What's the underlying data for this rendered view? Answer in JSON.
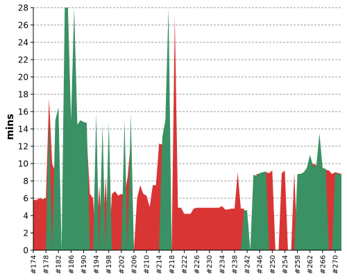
{
  "chart_data": {
    "type": "area",
    "ylabel": "mins",
    "ylim": [
      0,
      28
    ],
    "y_ticks": [
      0,
      2,
      4,
      6,
      8,
      10,
      12,
      14,
      16,
      18,
      20,
      22,
      24,
      26,
      28
    ],
    "x_tick_labels": [
      "#174",
      "#178",
      "#182",
      "#186",
      "#190",
      "#194",
      "#198",
      "#202",
      "#206",
      "#210",
      "#214",
      "#218",
      "#222",
      "#226",
      "#230",
      "#234",
      "#238",
      "#242",
      "#246",
      "#250",
      "#254",
      "#258",
      "#262",
      "#266",
      "#270"
    ],
    "x_start": 174,
    "x_end": 272,
    "grid": true,
    "grid_style": "dashed horizontal",
    "series": [
      {
        "color": "#d93535",
        "points": [
          [
            174,
            5.8
          ],
          [
            175,
            5.8
          ],
          [
            176,
            6.0
          ],
          [
            177,
            5.9
          ],
          [
            178,
            6.0
          ],
          [
            179,
            17.5
          ],
          [
            180,
            10.0
          ],
          [
            181,
            9.0
          ],
          [
            182,
            0
          ],
          [
            183,
            0
          ],
          [
            184,
            11.0
          ],
          [
            185,
            13.0
          ],
          [
            186,
            11.0
          ],
          [
            187,
            4.0
          ],
          [
            188,
            3.0
          ],
          [
            189,
            2.0
          ],
          [
            190,
            13.0
          ],
          [
            191,
            13.0
          ],
          [
            192,
            6.5
          ],
          [
            193,
            6.0
          ],
          [
            194,
            0
          ],
          [
            195,
            7.5
          ],
          [
            196,
            0
          ],
          [
            197,
            8.5
          ],
          [
            198,
            0
          ],
          [
            199,
            6.5
          ],
          [
            200,
            6.8
          ],
          [
            201,
            6.3
          ],
          [
            202,
            6.5
          ],
          [
            203,
            6.3
          ],
          [
            204,
            8.5
          ],
          [
            205,
            12.5
          ],
          [
            206,
            0
          ],
          [
            207,
            6.0
          ],
          [
            208,
            7.5
          ],
          [
            209,
            6.5
          ],
          [
            210,
            6.3
          ],
          [
            211,
            5.0
          ],
          [
            212,
            7.5
          ],
          [
            213,
            7.5
          ],
          [
            214,
            12.3
          ],
          [
            215,
            12.2
          ],
          [
            216,
            12.5
          ],
          [
            217,
            0
          ],
          [
            218,
            0
          ],
          [
            219,
            27.0
          ],
          [
            220,
            4.9
          ],
          [
            221,
            4.9
          ],
          [
            222,
            4.2
          ],
          [
            223,
            4.2
          ],
          [
            224,
            4.2
          ],
          [
            225,
            4.8
          ],
          [
            226,
            4.9
          ],
          [
            227,
            4.9
          ],
          [
            228,
            4.9
          ],
          [
            229,
            4.9
          ],
          [
            230,
            4.9
          ],
          [
            231,
            4.9
          ],
          [
            232,
            4.9
          ],
          [
            233,
            4.9
          ],
          [
            234,
            5.1
          ],
          [
            235,
            4.7
          ],
          [
            236,
            4.7
          ],
          [
            237,
            4.8
          ],
          [
            238,
            4.8
          ],
          [
            239,
            9.0
          ],
          [
            240,
            4.8
          ],
          [
            241,
            4.8
          ],
          [
            242,
            2.0
          ],
          [
            243,
            0
          ],
          [
            244,
            0
          ],
          [
            245,
            8.8
          ],
          [
            246,
            8.8
          ],
          [
            247,
            8.8
          ],
          [
            248,
            9.0
          ],
          [
            249,
            8.9
          ],
          [
            250,
            9.2
          ],
          [
            251,
            0
          ],
          [
            252,
            0
          ],
          [
            253,
            8.9
          ],
          [
            254,
            9.2
          ],
          [
            255,
            0
          ],
          [
            256,
            0
          ],
          [
            257,
            9.0
          ],
          [
            258,
            0
          ],
          [
            259,
            8.8
          ],
          [
            260,
            8.9
          ],
          [
            261,
            9.0
          ],
          [
            262,
            9.3
          ],
          [
            263,
            10.0
          ],
          [
            264,
            9.8
          ],
          [
            265,
            9.7
          ],
          [
            266,
            9.5
          ],
          [
            267,
            9.3
          ],
          [
            268,
            9.2
          ],
          [
            269,
            8.8
          ],
          [
            270,
            9.0
          ],
          [
            271,
            8.9
          ],
          [
            272,
            8.8
          ]
        ]
      },
      {
        "color": "#3a9163",
        "points": [
          [
            174,
            0
          ],
          [
            175,
            0
          ],
          [
            176,
            0
          ],
          [
            177,
            0
          ],
          [
            178,
            0
          ],
          [
            179,
            15.0
          ],
          [
            180,
            0
          ],
          [
            181,
            15.0
          ],
          [
            182,
            16.5
          ],
          [
            183,
            0
          ],
          [
            184,
            28.0
          ],
          [
            185,
            28.0
          ],
          [
            186,
            15.0
          ],
          [
            187,
            28.0
          ],
          [
            188,
            14.5
          ],
          [
            189,
            15.0
          ],
          [
            190,
            14.8
          ],
          [
            191,
            14.7
          ],
          [
            192,
            0
          ],
          [
            193,
            0
          ],
          [
            194,
            15.8
          ],
          [
            195,
            0
          ],
          [
            196,
            14.5
          ],
          [
            197,
            0
          ],
          [
            198,
            14.8
          ],
          [
            199,
            0
          ],
          [
            200,
            0
          ],
          [
            201,
            0
          ],
          [
            202,
            0
          ],
          [
            203,
            15.0
          ],
          [
            204,
            0
          ],
          [
            205,
            15.8
          ],
          [
            206,
            0
          ],
          [
            207,
            0
          ],
          [
            208,
            0
          ],
          [
            209,
            0
          ],
          [
            210,
            0
          ],
          [
            211,
            0
          ],
          [
            212,
            0
          ],
          [
            213,
            0
          ],
          [
            214,
            0
          ],
          [
            215,
            13.0
          ],
          [
            216,
            15.0
          ],
          [
            217,
            28.0
          ],
          [
            218,
            0
          ],
          [
            219,
            0
          ],
          [
            220,
            0
          ],
          [
            221,
            0
          ],
          [
            222,
            0
          ],
          [
            223,
            0
          ],
          [
            224,
            0
          ],
          [
            225,
            0
          ],
          [
            226,
            0
          ],
          [
            227,
            0
          ],
          [
            228,
            0
          ],
          [
            229,
            0
          ],
          [
            230,
            0
          ],
          [
            231,
            0
          ],
          [
            232,
            0
          ],
          [
            233,
            0
          ],
          [
            234,
            0
          ],
          [
            235,
            0
          ],
          [
            236,
            0
          ],
          [
            237,
            0
          ],
          [
            238,
            0
          ],
          [
            239,
            0
          ],
          [
            240,
            0
          ],
          [
            241,
            4.6
          ],
          [
            242,
            4.6
          ],
          [
            243,
            0
          ],
          [
            244,
            8.7
          ],
          [
            245,
            8.6
          ],
          [
            246,
            8.9
          ],
          [
            247,
            9.0
          ],
          [
            248,
            9.1
          ],
          [
            249,
            0
          ],
          [
            250,
            0
          ],
          [
            251,
            0
          ],
          [
            252,
            0
          ],
          [
            253,
            0
          ],
          [
            254,
            0
          ],
          [
            255,
            0
          ],
          [
            256,
            0
          ],
          [
            257,
            0
          ],
          [
            258,
            8.8
          ],
          [
            259,
            8.8
          ],
          [
            260,
            9.0
          ],
          [
            261,
            9.5
          ],
          [
            262,
            11.0
          ],
          [
            263,
            9.7
          ],
          [
            264,
            9.7
          ],
          [
            265,
            13.5
          ],
          [
            266,
            9.5
          ],
          [
            267,
            9.4
          ],
          [
            268,
            0
          ],
          [
            269,
            0
          ],
          [
            270,
            8.9
          ],
          [
            271,
            8.8
          ],
          [
            272,
            8.7
          ]
        ]
      }
    ]
  }
}
